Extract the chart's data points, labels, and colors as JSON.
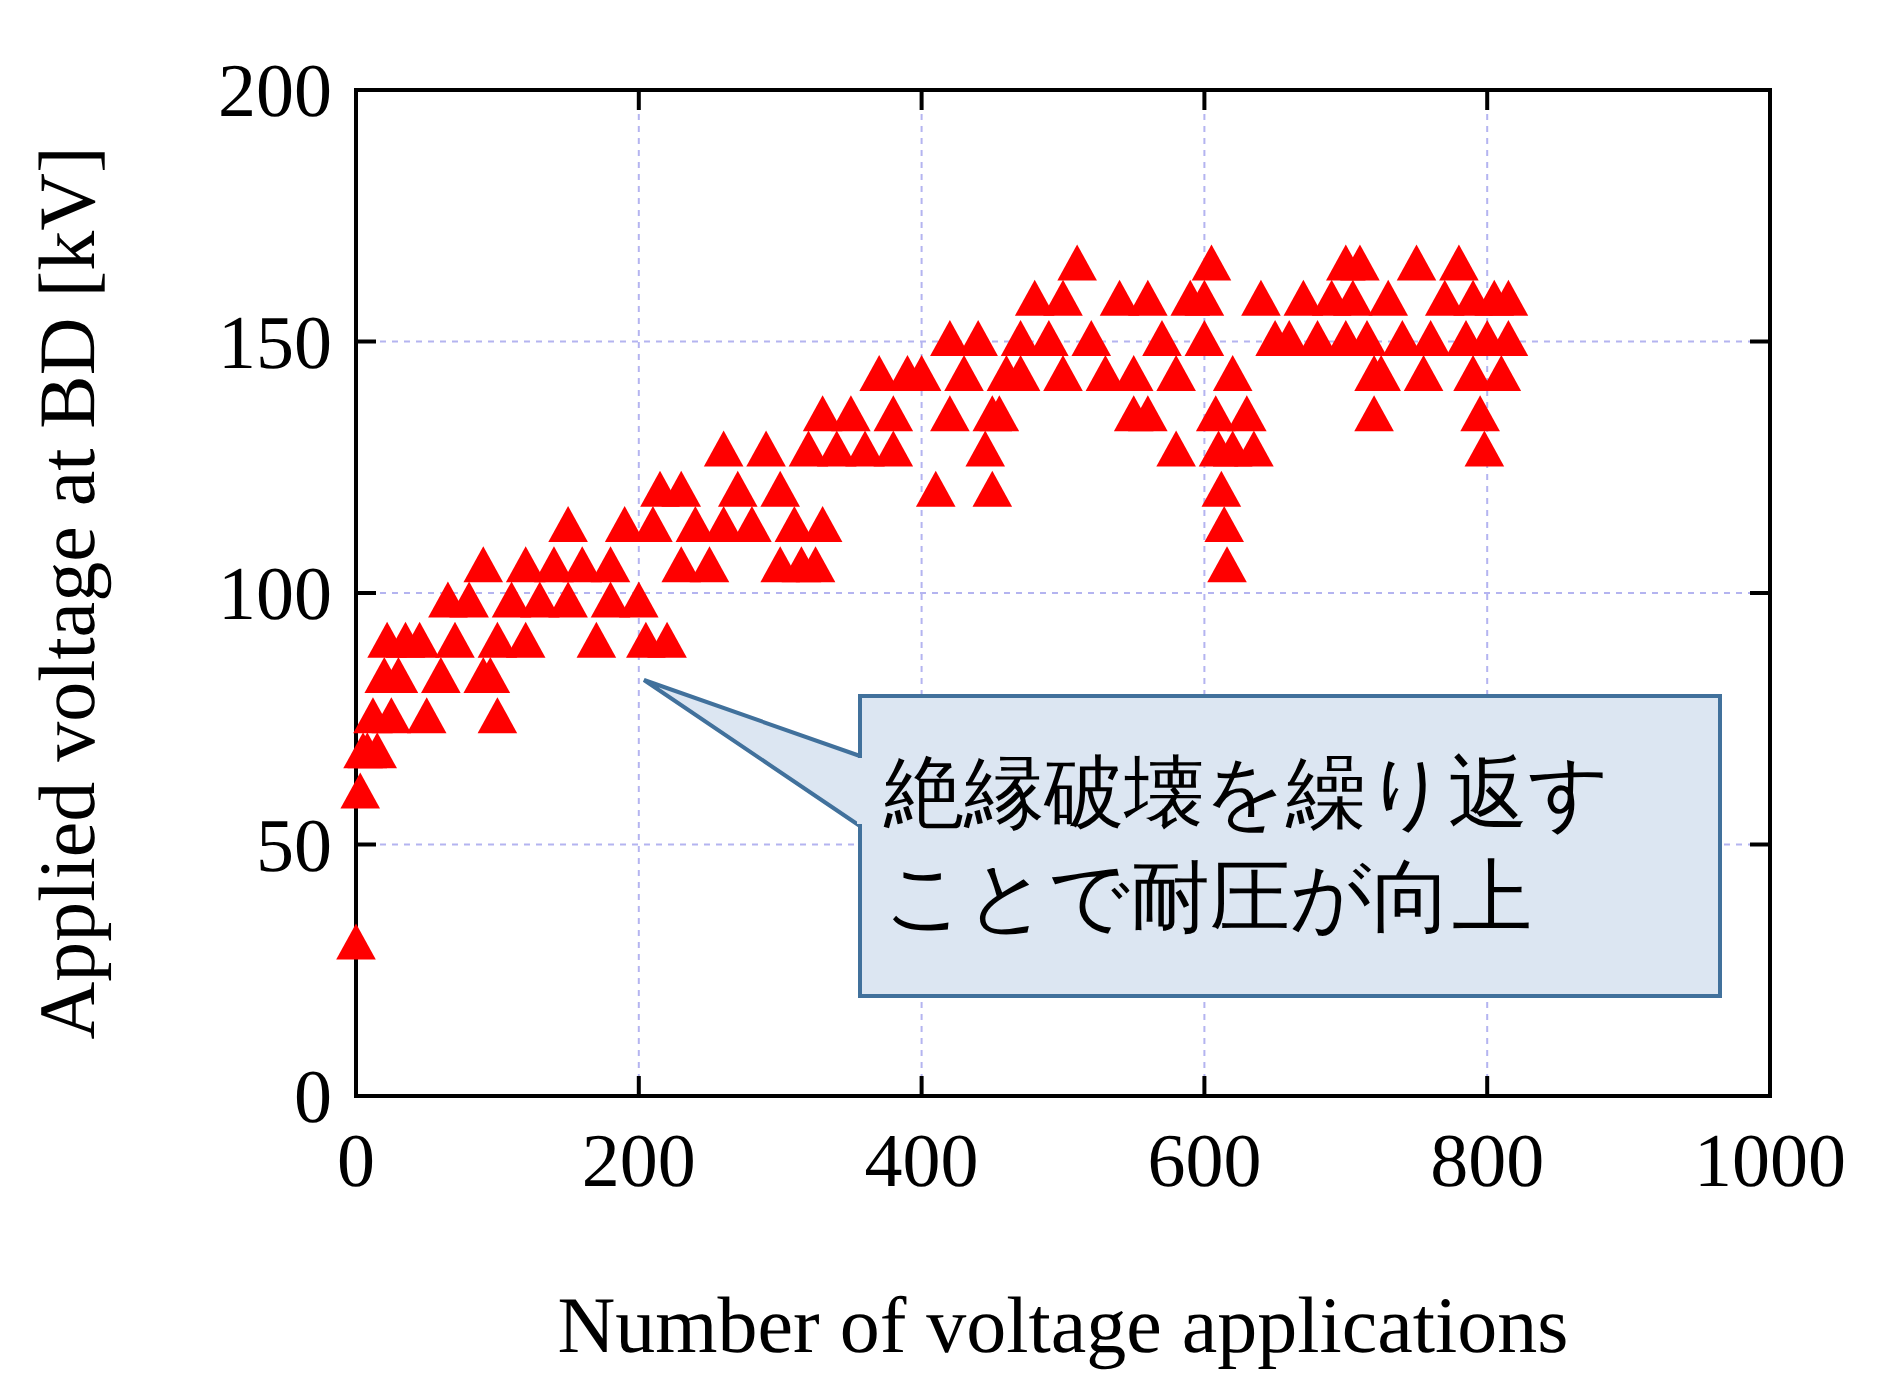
{
  "chart_data": {
    "type": "scatter",
    "xlabel": "Number of voltage applications",
    "ylabel": "Applied voltage at BD [kV]",
    "xlim": [
      0,
      1000
    ],
    "ylim": [
      0,
      200
    ],
    "xticks": [
      0,
      200,
      400,
      600,
      800,
      1000
    ],
    "yticks": [
      0,
      50,
      100,
      150,
      200
    ],
    "grid": true,
    "marker": "triangle",
    "series": [
      {
        "color": "#ff0000",
        "x": [
          0,
          3,
          5,
          8,
          12,
          15,
          20,
          22,
          25,
          30,
          35,
          45,
          50,
          60,
          65,
          70,
          80,
          90,
          90,
          95,
          100,
          100,
          110,
          120,
          120,
          130,
          140,
          150,
          150,
          160,
          170,
          180,
          180,
          190,
          200,
          205,
          210,
          215,
          220,
          230,
          230,
          240,
          250,
          260,
          260,
          270,
          280,
          290,
          300,
          300,
          310,
          315,
          320,
          325,
          330,
          330,
          340,
          350,
          360,
          370,
          380,
          380,
          390,
          400,
          410,
          420,
          420,
          430,
          440,
          445,
          450,
          450,
          455,
          460,
          470,
          470,
          480,
          490,
          500,
          500,
          510,
          520,
          530,
          540,
          550,
          550,
          560,
          560,
          570,
          580,
          580,
          590,
          600,
          600,
          605,
          608,
          610,
          612,
          614,
          616,
          620,
          620,
          630,
          635,
          640,
          650,
          660,
          670,
          680,
          690,
          700,
          700,
          705,
          710,
          715,
          720,
          720,
          725,
          730,
          740,
          750,
          755,
          760,
          770,
          780,
          785,
          790,
          790,
          795,
          798,
          800,
          805,
          810,
          815,
          815
        ],
        "values": [
          30,
          60,
          68,
          68,
          75,
          68,
          83,
          90,
          75,
          83,
          90,
          90,
          75,
          83,
          98,
          90,
          98,
          105,
          83,
          83,
          75,
          90,
          98,
          105,
          90,
          98,
          105,
          113,
          98,
          105,
          90,
          105,
          98,
          113,
          98,
          90,
          113,
          120,
          90,
          120,
          105,
          113,
          105,
          128,
          113,
          120,
          113,
          128,
          120,
          105,
          113,
          105,
          128,
          105,
          135,
          113,
          128,
          135,
          128,
          143,
          135,
          128,
          143,
          143,
          120,
          150,
          135,
          143,
          150,
          128,
          120,
          135,
          135,
          143,
          150,
          143,
          158,
          150,
          158,
          143,
          165,
          150,
          143,
          158,
          135,
          143,
          158,
          135,
          150,
          143,
          128,
          158,
          150,
          158,
          165,
          135,
          128,
          120,
          113,
          105,
          143,
          128,
          135,
          128,
          158,
          150,
          150,
          158,
          150,
          158,
          165,
          150,
          158,
          165,
          150,
          135,
          143,
          143,
          158,
          150,
          165,
          143,
          150,
          158,
          165,
          150,
          143,
          158,
          135,
          128,
          150,
          158,
          143,
          158,
          150
        ]
      }
    ],
    "annotations": [
      "絶縁破壊を繰り返すことで耐圧が向上"
    ]
  }
}
